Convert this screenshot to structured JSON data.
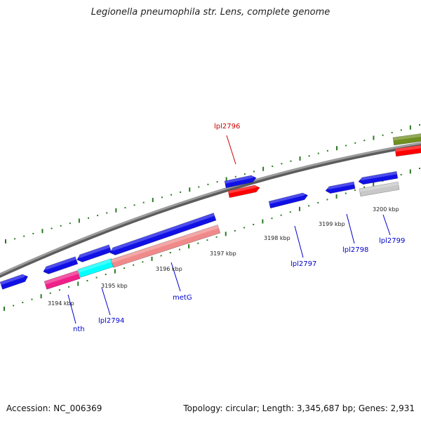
{
  "title": "Legionella pneumophila str. Lens, complete genome",
  "footer": {
    "accession": "Accession: NC_006369",
    "summary": "Topology: circular; Length: 3,345,687 bp; Genes: 2,931"
  },
  "colors": {
    "backbone": "#8a8a8a",
    "tick": "#2a7a22",
    "label_blue": "#0000cc",
    "label_red": "#cc0000",
    "gene_blue": "#1010e6",
    "gene_red": "#ff0000",
    "gene_pink": "#f08a8a",
    "gene_magenta": "#f0208a",
    "gene_cyan": "#00ffff",
    "gene_gray": "#c8c8c8",
    "gene_olive": "#6f8f20"
  },
  "scale_labels": [
    "3194 kbp",
    "3195 kbp",
    "3196 kbp",
    "3197 kbp",
    "3198 kbp",
    "3199 kbp",
    "3200 kbp"
  ],
  "gene_labels": [
    {
      "id": "nth",
      "text": "nth",
      "color": "blue"
    },
    {
      "id": "lpl2794",
      "text": "lpl2794",
      "color": "blue"
    },
    {
      "id": "metG",
      "text": "metG",
      "color": "blue"
    },
    {
      "id": "lpl2796",
      "text": "lpl2796",
      "color": "red"
    },
    {
      "id": "lpl2797",
      "text": "lpl2797",
      "color": "blue"
    },
    {
      "id": "lpl2798",
      "text": "lpl2798",
      "color": "blue"
    },
    {
      "id": "lpl2799",
      "text": "lpl2799",
      "color": "blue"
    }
  ]
}
